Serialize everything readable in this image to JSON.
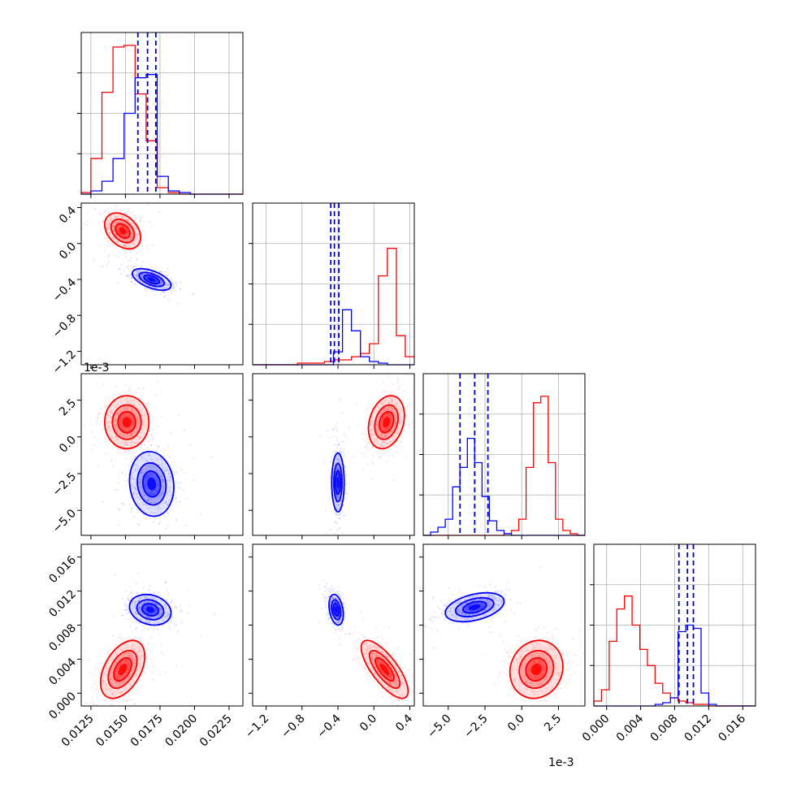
{
  "chart_data": {
    "type": "corner",
    "grid": true,
    "series": [
      {
        "name": "",
        "color": "#ff0000"
      },
      {
        "name": "",
        "color": "#0000ff"
      }
    ],
    "quantile_line_color": "#0000cc",
    "params": [
      {
        "index": 0,
        "range": [
          0.0118,
          0.0235
        ],
        "offset": ""
      },
      {
        "index": 1,
        "range": [
          -1.35,
          0.45
        ],
        "offset": "1e-3"
      },
      {
        "index": 2,
        "range": [
          -6.7,
          4.3
        ],
        "offset": "1e-3"
      },
      {
        "index": 3,
        "range": [
          -0.0015,
          0.0175
        ],
        "offset": ""
      }
    ],
    "x_ticks": [
      {
        "values": [
          0.0125,
          0.015,
          0.0175,
          0.02,
          0.0225
        ],
        "labels": [
          "0.0125",
          "0.0150",
          "0.0175",
          "0.0200",
          "0.0225"
        ]
      },
      {
        "values": [
          -1.2,
          -0.8,
          -0.4,
          0.0,
          0.4
        ],
        "labels": [
          "−1.2",
          "−0.8",
          "−0.4",
          "0.0",
          "0.4"
        ]
      },
      {
        "values": [
          -5.0,
          -2.5,
          0.0,
          2.5
        ],
        "labels": [
          "−5.0",
          "−2.5",
          "0.0",
          "2.5"
        ]
      },
      {
        "values": [
          0.0,
          0.004,
          0.008,
          0.012,
          0.016
        ],
        "labels": [
          "0.000",
          "0.004",
          "0.008",
          "0.012",
          "0.016"
        ]
      }
    ],
    "y_ticks": [
      {
        "values": [],
        "labels": []
      },
      {
        "values": [
          -1.2,
          -0.8,
          -0.4,
          0.0,
          0.4
        ],
        "labels": [
          "−1.2",
          "−0.8",
          "−0.4",
          "0.0",
          "0.4"
        ]
      },
      {
        "values": [
          -5.0,
          -2.5,
          0.0,
          2.5
        ],
        "labels": [
          "−5.0",
          "−2.5",
          "0.0",
          "2.5"
        ]
      },
      {
        "values": [
          0.0,
          0.004,
          0.008,
          0.012,
          0.016
        ],
        "labels": [
          "0.000",
          "0.004",
          "0.008",
          "0.012",
          "0.016"
        ]
      }
    ],
    "histograms": [
      {
        "param": 0,
        "bin_edges": [
          0.0118,
          0.0125,
          0.0133,
          0.0141,
          0.0149,
          0.0157,
          0.0165,
          0.0173,
          0.0181,
          0.0189,
          0.0197,
          0.0205,
          0.0213,
          0.0221,
          0.0229,
          0.0235
        ],
        "red": [
          0.01,
          0.22,
          0.63,
          0.91,
          0.92,
          0.62,
          0.33,
          0.04,
          0.01,
          0.0,
          0.0,
          0.0,
          0.0,
          0.0,
          0.0
        ],
        "blue": [
          0.0,
          0.02,
          0.08,
          0.22,
          0.5,
          0.72,
          0.74,
          0.11,
          0.02,
          0.01,
          0.0,
          0.0,
          0.0,
          0.0,
          0.0
        ],
        "quantiles": [
          0.0159,
          0.0166,
          0.0172
        ]
      },
      {
        "param": 1,
        "bin_edges": [
          -1.35,
          -1.25,
          -1.15,
          -1.05,
          -0.95,
          -0.85,
          -0.75,
          -0.65,
          -0.55,
          -0.45,
          -0.35,
          -0.25,
          -0.15,
          -0.05,
          0.05,
          0.15,
          0.25,
          0.35,
          0.45
        ],
        "red": [
          0.0,
          0.0,
          0.0,
          0.0,
          0.0,
          0.01,
          0.01,
          0.01,
          0.02,
          0.03,
          0.03,
          0.05,
          0.07,
          0.13,
          0.55,
          0.72,
          0.18,
          0.05
        ],
        "blue": [
          0.0,
          0.0,
          0.0,
          0.0,
          0.0,
          0.0,
          0.0,
          0.0,
          0.0,
          0.08,
          0.34,
          0.21,
          0.05,
          0.02,
          0.01,
          0.0,
          0.0,
          0.0
        ],
        "quantiles": [
          -0.48,
          -0.44,
          -0.39
        ]
      },
      {
        "param": 2,
        "bin_edges": [
          -6.7,
          -6.2,
          -5.7,
          -5.2,
          -4.7,
          -4.2,
          -3.7,
          -3.2,
          -2.7,
          -2.2,
          -1.7,
          -1.2,
          -0.7,
          -0.2,
          0.3,
          0.8,
          1.3,
          1.8,
          2.3,
          2.8,
          3.3,
          3.8,
          4.3
        ],
        "red": [
          0.0,
          0.0,
          0.0,
          0.0,
          0.0,
          0.0,
          0.0,
          0.0,
          0.0,
          0.0,
          0.0,
          0.01,
          0.03,
          0.1,
          0.42,
          0.82,
          0.86,
          0.45,
          0.1,
          0.03,
          0.01,
          0.0
        ],
        "blue": [
          0.0,
          0.02,
          0.05,
          0.1,
          0.3,
          0.42,
          0.6,
          0.45,
          0.24,
          0.09,
          0.03,
          0.01,
          0.0,
          0.0,
          0.0,
          0.0,
          0.0,
          0.0,
          0.0,
          0.0,
          0.0,
          0.0
        ],
        "quantiles": [
          -4.2,
          -3.2,
          -2.3
        ]
      },
      {
        "param": 3,
        "bin_edges": [
          -0.0015,
          -0.0006,
          0.0003,
          0.0012,
          0.0021,
          0.003,
          0.0039,
          0.0048,
          0.0057,
          0.0066,
          0.0075,
          0.0084,
          0.0093,
          0.0102,
          0.0111,
          0.012,
          0.0129,
          0.0138,
          0.0147,
          0.0156,
          0.0165,
          0.0175
        ],
        "red": [
          0.03,
          0.1,
          0.4,
          0.6,
          0.68,
          0.5,
          0.35,
          0.25,
          0.14,
          0.08,
          0.05,
          0.03,
          0.02,
          0.01,
          0.01,
          0.0,
          0.0,
          0.0,
          0.0,
          0.0,
          0.0
        ],
        "blue": [
          0.0,
          0.0,
          0.0,
          0.0,
          0.0,
          0.0,
          0.0,
          0.0,
          0.01,
          0.02,
          0.05,
          0.46,
          0.5,
          0.48,
          0.08,
          0.01,
          0.0,
          0.0,
          0.0,
          0.0,
          0.0
        ],
        "quantiles": [
          0.0085,
          0.0095,
          0.0102
        ]
      }
    ],
    "pairs": [
      {
        "x": 0,
        "y": 1,
        "red": {
          "mean": [
            0.0148,
            0.14
          ],
          "sd": [
            0.00065,
            0.1
          ],
          "rho": -0.35
        },
        "blue": {
          "mean": [
            0.0169,
            -0.4
          ],
          "sd": [
            0.0007,
            0.06
          ],
          "rho": -0.55
        }
      },
      {
        "x": 0,
        "y": 2,
        "red": {
          "mean": [
            0.0151,
            1.0
          ],
          "sd": [
            0.0008,
            0.9
          ],
          "rho": 0.0
        },
        "blue": {
          "mean": [
            0.0169,
            -3.2
          ],
          "sd": [
            0.0008,
            1.1
          ],
          "rho": -0.1
        }
      },
      {
        "x": 1,
        "y": 2,
        "red": {
          "mean": [
            0.14,
            1.0
          ],
          "sd": [
            0.1,
            0.9
          ],
          "rho": 0.25
        },
        "blue": {
          "mean": [
            -0.4,
            -3.1
          ],
          "sd": [
            0.035,
            1.0
          ],
          "rho": 0.0
        }
      },
      {
        "x": 0,
        "y": 3,
        "red": {
          "mean": [
            0.0148,
            0.0028
          ],
          "sd": [
            0.0008,
            0.0017
          ],
          "rho": 0.45
        },
        "blue": {
          "mean": [
            0.0168,
            0.0098
          ],
          "sd": [
            0.00075,
            0.0009
          ],
          "rho": -0.2
        }
      },
      {
        "x": 1,
        "y": 3,
        "red": {
          "mean": [
            0.12,
            0.0028
          ],
          "sd": [
            0.13,
            0.0017
          ],
          "rho": -0.75
        },
        "blue": {
          "mean": [
            -0.42,
            0.0098
          ],
          "sd": [
            0.04,
            0.0009
          ],
          "rho": -0.3
        }
      },
      {
        "x": 2,
        "y": 3,
        "red": {
          "mean": [
            1.0,
            0.0028
          ],
          "sd": [
            0.9,
            0.0017
          ],
          "rho": 0.1
        },
        "blue": {
          "mean": [
            -3.2,
            0.0101
          ],
          "sd": [
            1.0,
            0.00085
          ],
          "rho": 0.4
        }
      }
    ]
  }
}
